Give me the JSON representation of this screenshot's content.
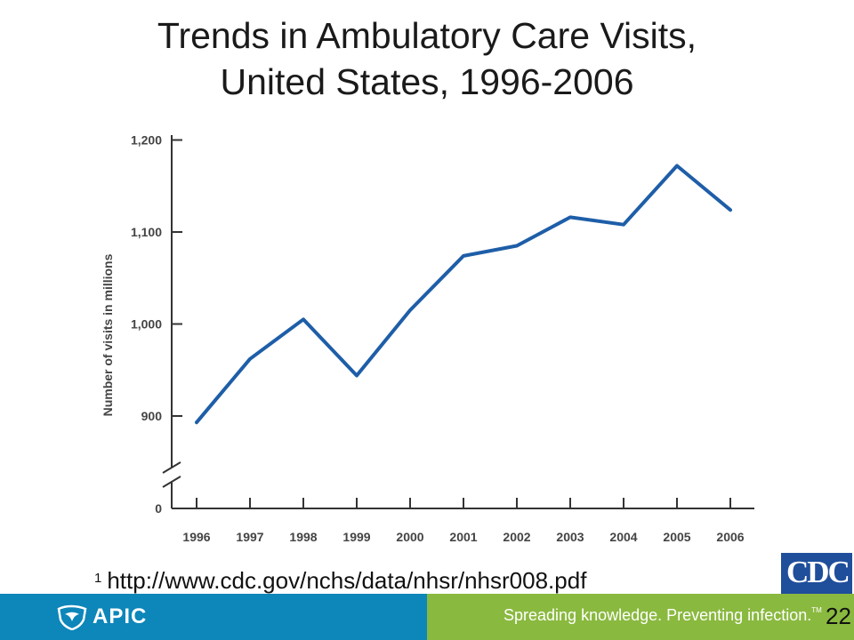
{
  "slide": {
    "title_line1": "Trends in Ambulatory Care Visits,",
    "title_line2": "United States, 1996-2006",
    "footnote_marker": "1",
    "footnote_url": "http://www.cdc.gov/nchs/data/nhsr/nhsr008.pdf",
    "page_number": "22"
  },
  "branding": {
    "apic_name": "APIC",
    "apic_logo_icon": "apic-bird-shield-icon",
    "tagline": "Spreading knowledge. Preventing infection.",
    "tagline_tm": "TM",
    "cdc_text": "CDC",
    "colors": {
      "apic_blue": "#0d86ba",
      "apic_green": "#8ab93f",
      "cdc_blue": "#1f4e9b",
      "line": "#1e5ea8"
    }
  },
  "chart_data": {
    "type": "line",
    "ylabel": "Number of visits in millions",
    "xlabel": "",
    "x": [
      "1996",
      "1997",
      "1998",
      "1999",
      "2000",
      "2001",
      "2002",
      "2003",
      "2004",
      "2005",
      "2006"
    ],
    "values": [
      893,
      962,
      1005,
      944,
      1015,
      1074,
      1085,
      1116,
      1108,
      1172,
      1124
    ],
    "yticks": [
      "0",
      "900",
      "1,000",
      "1,100",
      "1,200"
    ],
    "ylim": [
      850,
      1200
    ],
    "axis_break": true,
    "grid": false,
    "legend": "none"
  }
}
